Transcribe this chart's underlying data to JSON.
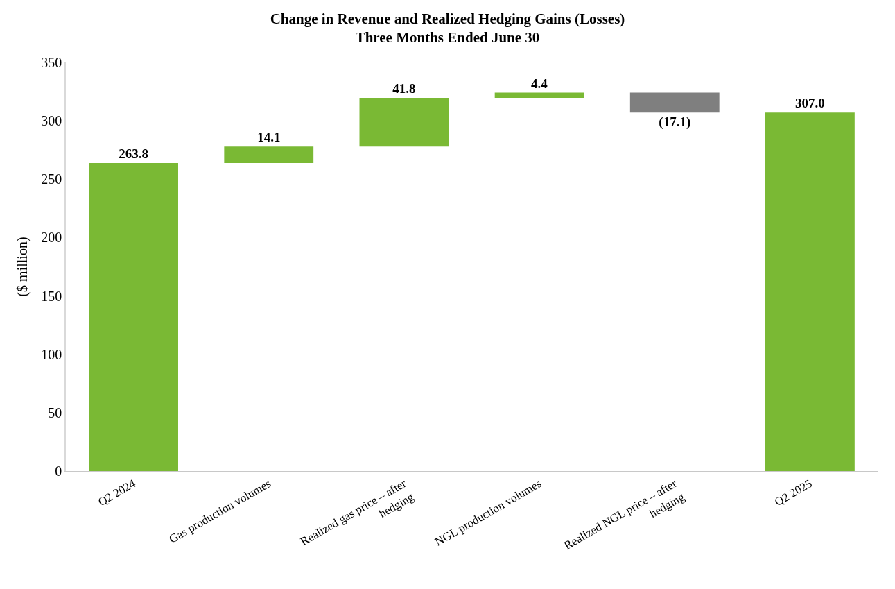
{
  "chart_data": {
    "type": "bar",
    "title": "Change in Revenue and Realized Hedging Gains (Losses)\nThree Months Ended June 30",
    "ylabel": "($ million)",
    "categories": [
      "Q2 2024",
      "Gas production volumes",
      "Realized gas price – after hedging",
      "NGL production volumes",
      "Realized NGL price – after hedging",
      "Q2 2025"
    ],
    "values": [
      263.8,
      14.1,
      41.8,
      4.4,
      -17.1,
      307.0
    ],
    "base": [
      0,
      263.8,
      277.9,
      319.7,
      324.1,
      0
    ],
    "colors": [
      "#7ab934",
      "#7ab934",
      "#7ab934",
      "#7ab934",
      "#7f7f7f",
      "#7ab934"
    ],
    "value_labels": [
      "263.8",
      "14.1",
      "41.8",
      "4.4",
      "(17.1)",
      "307.0"
    ],
    "ylim": [
      0,
      350
    ],
    "yticks": [
      0,
      50,
      100,
      150,
      200,
      250,
      300,
      350
    ],
    "grid": false
  }
}
